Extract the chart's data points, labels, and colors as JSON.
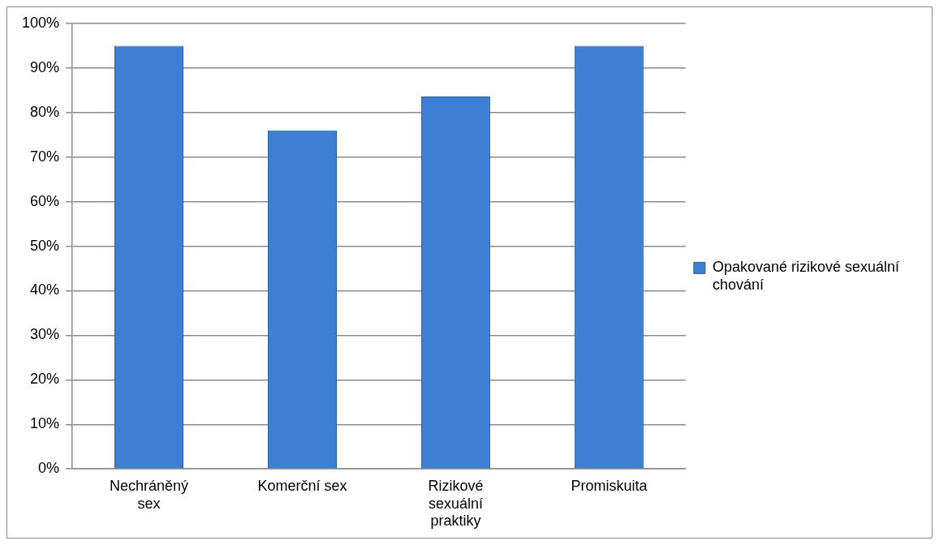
{
  "chart_data": {
    "type": "bar",
    "categories": [
      "Nechráněný sex",
      "Komerční sex",
      "Rizikové sexuální praktiky",
      "Promiskuita"
    ],
    "series": [
      {
        "name": "Opakované rizikové sexuální chování",
        "color": "#3d7fd1",
        "values": [
          95,
          76,
          83.6,
          95
        ]
      }
    ],
    "ylim": [
      0,
      100
    ],
    "yticks": [
      {
        "value": 0,
        "label": "0%"
      },
      {
        "value": 10,
        "label": "10%"
      },
      {
        "value": 20,
        "label": "20%"
      },
      {
        "value": 30,
        "label": "30%"
      },
      {
        "value": 40,
        "label": "40%"
      },
      {
        "value": 50,
        "label": "50%"
      },
      {
        "value": 60,
        "label": "60%"
      },
      {
        "value": 70,
        "label": "70%"
      },
      {
        "value": 80,
        "label": "80%"
      },
      {
        "value": 90,
        "label": "90%"
      },
      {
        "value": 100,
        "label": "100%"
      }
    ],
    "grid": "y",
    "legend": "right"
  }
}
